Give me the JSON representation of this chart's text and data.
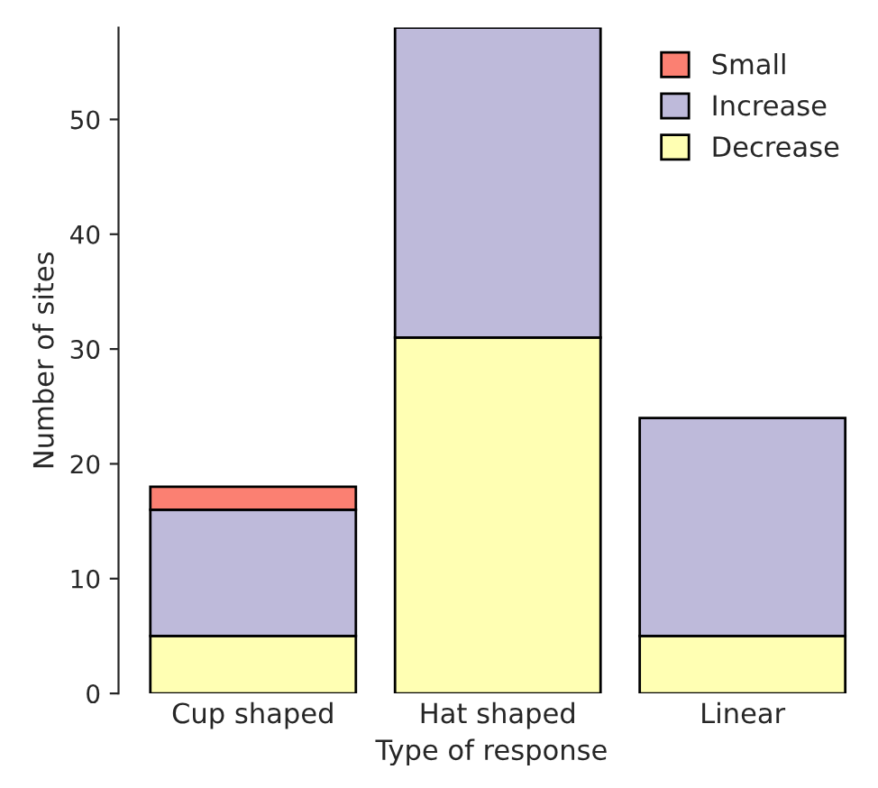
{
  "chart_data": {
    "type": "bar",
    "stacked": true,
    "xlabel": "Type of response",
    "ylabel": "Number of sites",
    "categories": [
      "Cup shaped",
      "Hat shaped",
      "Linear"
    ],
    "series": [
      {
        "name": "Decrease",
        "color": "#ffffb3",
        "values": [
          5,
          31,
          5
        ]
      },
      {
        "name": "Increase",
        "color": "#bebada",
        "values": [
          11,
          27,
          19
        ]
      },
      {
        "name": "Small",
        "color": "#fb8072",
        "values": [
          2,
          null,
          null
        ]
      }
    ],
    "ylim": [
      0,
      58
    ],
    "yticks": [
      0,
      10,
      20,
      30,
      40,
      50
    ],
    "grid": false,
    "legend": "top right"
  }
}
